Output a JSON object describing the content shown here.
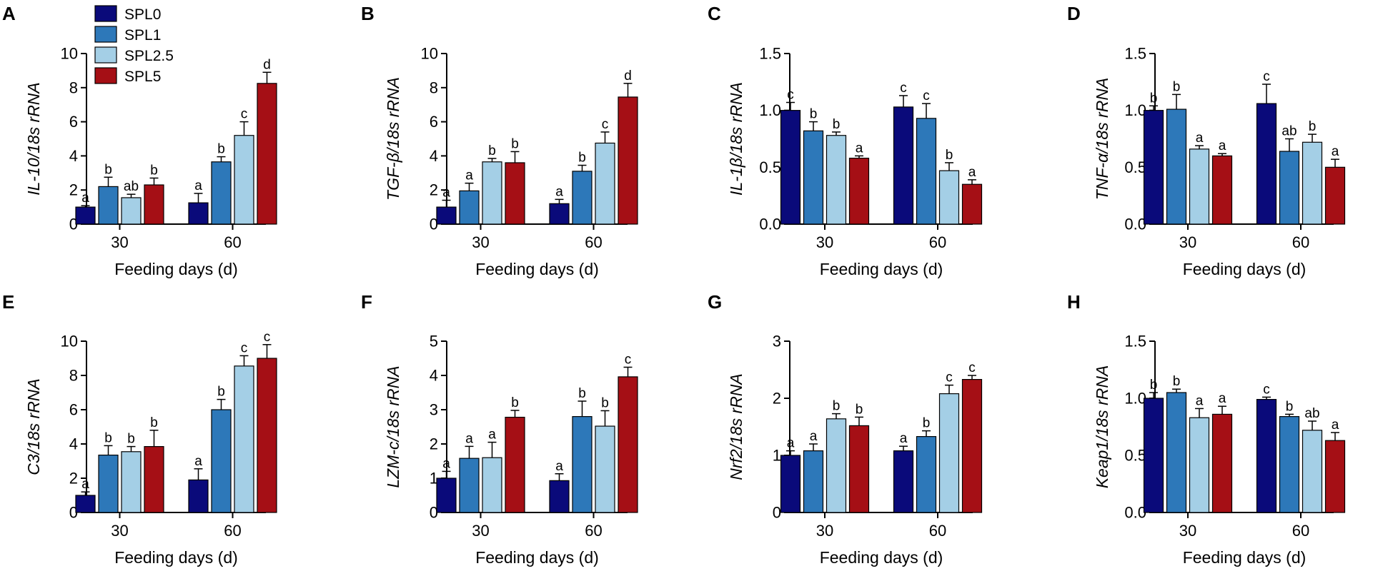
{
  "colors": [
    "#0a0a7a",
    "#2d78b9",
    "#a4cfe6",
    "#a50f15"
  ],
  "legend": [
    "SPL0",
    "SPL1",
    "SPL2.5",
    "SPL5"
  ],
  "chart_data": [
    {
      "type": "bar",
      "panel": "A",
      "title": "",
      "ylabel": "IL-10/18s rRNA",
      "xlabel": "Feeding days (d)",
      "categories": [
        "30",
        "60"
      ],
      "ylim": [
        0,
        10
      ],
      "yticks": [
        "0",
        "2",
        "4",
        "6",
        "8",
        "10"
      ],
      "series": [
        {
          "name": "SPL0",
          "values": [
            1.0,
            1.25
          ],
          "errors": [
            0.08,
            0.55
          ],
          "sig": [
            "a",
            "a"
          ]
        },
        {
          "name": "SPL1",
          "values": [
            2.2,
            3.65
          ],
          "errors": [
            0.55,
            0.3
          ],
          "sig": [
            "b",
            "b"
          ]
        },
        {
          "name": "SPL2.5",
          "values": [
            1.55,
            5.2
          ],
          "errors": [
            0.2,
            0.8
          ],
          "sig": [
            "ab",
            "c"
          ]
        },
        {
          "name": "SPL5",
          "values": [
            2.3,
            8.25
          ],
          "errors": [
            0.4,
            0.65
          ],
          "sig": [
            "b",
            "d"
          ]
        }
      ]
    },
    {
      "type": "bar",
      "panel": "B",
      "title": "",
      "ylabel": "TGF-β/18s rRNA",
      "xlabel": "Feeding days (d)",
      "categories": [
        "30",
        "60"
      ],
      "ylim": [
        0,
        10
      ],
      "yticks": [
        "0",
        "2",
        "4",
        "6",
        "8",
        "10"
      ],
      "series": [
        {
          "name": "SPL0",
          "values": [
            1.0,
            1.2
          ],
          "errors": [
            0.4,
            0.25
          ],
          "sig": [
            "a",
            "a"
          ]
        },
        {
          "name": "SPL1",
          "values": [
            1.95,
            3.1
          ],
          "errors": [
            0.45,
            0.35
          ],
          "sig": [
            "a",
            "b"
          ]
        },
        {
          "name": "SPL2.5",
          "values": [
            3.65,
            4.75
          ],
          "errors": [
            0.2,
            0.65
          ],
          "sig": [
            "b",
            "c"
          ]
        },
        {
          "name": "SPL5",
          "values": [
            3.6,
            7.45
          ],
          "errors": [
            0.65,
            0.8
          ],
          "sig": [
            "b",
            "d"
          ]
        }
      ]
    },
    {
      "type": "bar",
      "panel": "C",
      "title": "",
      "ylabel": "IL-1β/18s rRNA",
      "xlabel": "Feeding days (d)",
      "categories": [
        "30",
        "60"
      ],
      "ylim": [
        0,
        1.5
      ],
      "yticks": [
        "0.0",
        "0.5",
        "1.0",
        "1.5"
      ],
      "series": [
        {
          "name": "SPL0",
          "values": [
            1.0,
            1.03
          ],
          "errors": [
            0.07,
            0.1
          ],
          "sig": [
            "c",
            "c"
          ]
        },
        {
          "name": "SPL1",
          "values": [
            0.82,
            0.93
          ],
          "errors": [
            0.08,
            0.13
          ],
          "sig": [
            "b",
            "c"
          ]
        },
        {
          "name": "SPL2.5",
          "values": [
            0.78,
            0.47
          ],
          "errors": [
            0.03,
            0.07
          ],
          "sig": [
            "b",
            "b"
          ]
        },
        {
          "name": "SPL5",
          "values": [
            0.58,
            0.35
          ],
          "errors": [
            0.02,
            0.04
          ],
          "sig": [
            "a",
            "a"
          ]
        }
      ]
    },
    {
      "type": "bar",
      "panel": "D",
      "title": "",
      "ylabel": "TNF-α/18s rRNA",
      "xlabel": "Feeding days (d)",
      "categories": [
        "30",
        "60"
      ],
      "ylim": [
        0,
        1.5
      ],
      "yticks": [
        "0.0",
        "0.5",
        "1.0",
        "1.5"
      ],
      "series": [
        {
          "name": "SPL0",
          "values": [
            1.0,
            1.06
          ],
          "errors": [
            0.04,
            0.17
          ],
          "sig": [
            "b",
            "c"
          ]
        },
        {
          "name": "SPL1",
          "values": [
            1.01,
            0.64
          ],
          "errors": [
            0.13,
            0.11
          ],
          "sig": [
            "b",
            "ab"
          ]
        },
        {
          "name": "SPL2.5",
          "values": [
            0.66,
            0.72
          ],
          "errors": [
            0.03,
            0.07
          ],
          "sig": [
            "a",
            "b"
          ]
        },
        {
          "name": "SPL5",
          "values": [
            0.6,
            0.5
          ],
          "errors": [
            0.02,
            0.07
          ],
          "sig": [
            "a",
            "a"
          ]
        }
      ]
    },
    {
      "type": "bar",
      "panel": "E",
      "title": "",
      "ylabel": "C3/18s rRNA",
      "xlabel": "Feeding days (d)",
      "categories": [
        "30",
        "60"
      ],
      "ylim": [
        0,
        10
      ],
      "yticks": [
        "0",
        "2",
        "4",
        "6",
        "8",
        "10"
      ],
      "series": [
        {
          "name": "SPL0",
          "values": [
            1.0,
            1.9
          ],
          "errors": [
            0.2,
            0.65
          ],
          "sig": [
            "a",
            "a"
          ]
        },
        {
          "name": "SPL1",
          "values": [
            3.35,
            6.0
          ],
          "errors": [
            0.55,
            0.6
          ],
          "sig": [
            "b",
            "b"
          ]
        },
        {
          "name": "SPL2.5",
          "values": [
            3.55,
            8.55
          ],
          "errors": [
            0.3,
            0.6
          ],
          "sig": [
            "b",
            "c"
          ]
        },
        {
          "name": "SPL5",
          "values": [
            3.85,
            9.0
          ],
          "errors": [
            0.95,
            0.8
          ],
          "sig": [
            "b",
            "c"
          ]
        }
      ]
    },
    {
      "type": "bar",
      "panel": "F",
      "title": "",
      "ylabel": "LZM-c/18s rRNA",
      "xlabel": "Feeding days (d)",
      "categories": [
        "30",
        "60"
      ],
      "ylim": [
        0,
        5
      ],
      "yticks": [
        "0",
        "1",
        "2",
        "3",
        "4",
        "5"
      ],
      "series": [
        {
          "name": "SPL0",
          "values": [
            1.0,
            0.93
          ],
          "errors": [
            0.2,
            0.2
          ],
          "sig": [
            "a",
            "a"
          ]
        },
        {
          "name": "SPL1",
          "values": [
            1.58,
            2.8
          ],
          "errors": [
            0.35,
            0.45
          ],
          "sig": [
            "a",
            "b"
          ]
        },
        {
          "name": "SPL2.5",
          "values": [
            1.6,
            2.52
          ],
          "errors": [
            0.45,
            0.45
          ],
          "sig": [
            "a",
            "b"
          ]
        },
        {
          "name": "SPL5",
          "values": [
            2.78,
            3.96
          ],
          "errors": [
            0.2,
            0.28
          ],
          "sig": [
            "b",
            "c"
          ]
        }
      ]
    },
    {
      "type": "bar",
      "panel": "G",
      "title": "",
      "ylabel": "Nrf2/18s rRNA",
      "xlabel": "Feeding days (d)",
      "categories": [
        "30",
        "60"
      ],
      "ylim": [
        0,
        3
      ],
      "yticks": [
        "0",
        "1",
        "2",
        "3"
      ],
      "series": [
        {
          "name": "SPL0",
          "values": [
            1.0,
            1.08
          ],
          "errors": [
            0.08,
            0.08
          ],
          "sig": [
            "a",
            "a"
          ]
        },
        {
          "name": "SPL1",
          "values": [
            1.08,
            1.33
          ],
          "errors": [
            0.12,
            0.1
          ],
          "sig": [
            "a",
            "b"
          ]
        },
        {
          "name": "SPL2.5",
          "values": [
            1.64,
            2.08
          ],
          "errors": [
            0.09,
            0.15
          ],
          "sig": [
            "b",
            "c"
          ]
        },
        {
          "name": "SPL5",
          "values": [
            1.52,
            2.33
          ],
          "errors": [
            0.15,
            0.07
          ],
          "sig": [
            "b",
            "c"
          ]
        }
      ]
    },
    {
      "type": "bar",
      "panel": "H",
      "title": "",
      "ylabel": "Keap1/18s rRNA",
      "xlabel": "Feeding days (d)",
      "categories": [
        "30",
        "60"
      ],
      "ylim": [
        0,
        1.5
      ],
      "yticks": [
        "0.0",
        "0.5",
        "1.0",
        "1.5"
      ],
      "series": [
        {
          "name": "SPL0",
          "values": [
            1.0,
            0.99
          ],
          "errors": [
            0.05,
            0.02
          ],
          "sig": [
            "b",
            "c"
          ]
        },
        {
          "name": "SPL1",
          "values": [
            1.05,
            0.84
          ],
          "errors": [
            0.03,
            0.02
          ],
          "sig": [
            "b",
            "b"
          ]
        },
        {
          "name": "SPL2.5",
          "values": [
            0.83,
            0.72
          ],
          "errors": [
            0.08,
            0.08
          ],
          "sig": [
            "a",
            "ab"
          ]
        },
        {
          "name": "SPL5",
          "values": [
            0.86,
            0.63
          ],
          "errors": [
            0.07,
            0.07
          ],
          "sig": [
            "a",
            "a"
          ]
        }
      ]
    }
  ]
}
